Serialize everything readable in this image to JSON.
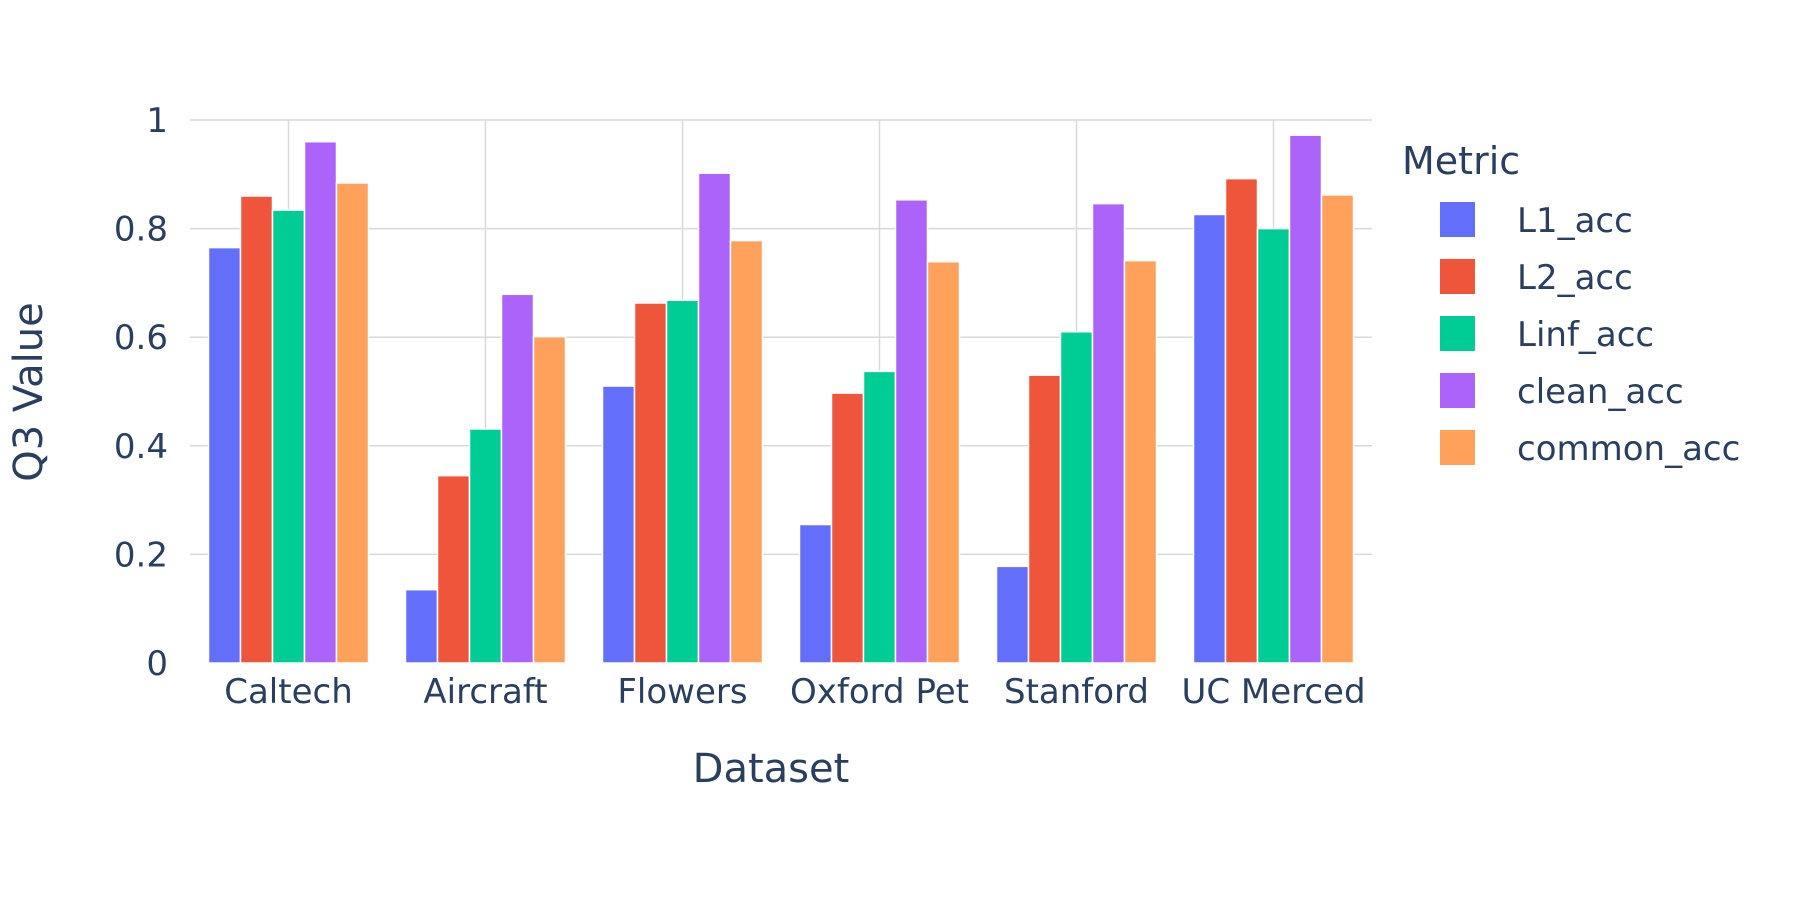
{
  "chart_data": {
    "type": "bar",
    "categories": [
      "Caltech",
      "Aircraft",
      "Flowers",
      "Oxford Pet",
      "Stanford",
      "UC Merced"
    ],
    "series": [
      {
        "name": "L1_acc",
        "color": "#636efa",
        "values": [
          0.765,
          0.135,
          0.51,
          0.255,
          0.178,
          0.826
        ]
      },
      {
        "name": "L2_acc",
        "color": "#ef553b",
        "values": [
          0.86,
          0.345,
          0.663,
          0.497,
          0.53,
          0.892
        ]
      },
      {
        "name": "Linf_acc",
        "color": "#00cc96",
        "values": [
          0.834,
          0.431,
          0.668,
          0.537,
          0.61,
          0.8
        ]
      },
      {
        "name": "clean_acc",
        "color": "#ab63fa",
        "values": [
          0.96,
          0.679,
          0.902,
          0.853,
          0.846,
          0.972
        ]
      },
      {
        "name": "common_acc",
        "color": "#ffa15a",
        "values": [
          0.884,
          0.601,
          0.778,
          0.739,
          0.741,
          0.862
        ]
      }
    ],
    "xlabel": "Dataset",
    "ylabel": "Q3 Value",
    "ylim": [
      0,
      1.0
    ],
    "yticks": [
      0,
      0.2,
      0.4,
      0.6,
      0.8,
      1
    ],
    "ytick_labels": [
      "0",
      "0.2",
      "0.4",
      "0.6",
      "0.8",
      "1"
    ],
    "legend_title": "Metric",
    "legend_position": "right",
    "grid": true
  }
}
